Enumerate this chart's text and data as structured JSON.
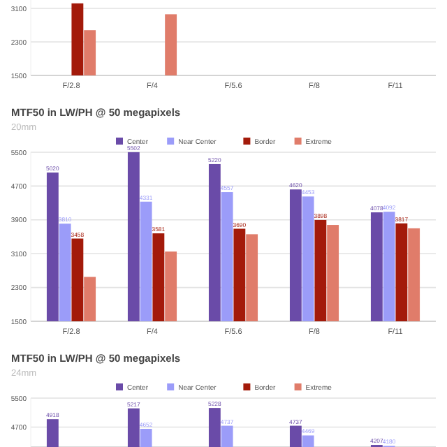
{
  "chart_data": [
    {
      "type": "bar",
      "categories": [
        "F/2.8",
        "F/4",
        "F/5.6",
        "F/8",
        "F/11"
      ],
      "ylim": [
        1500,
        3300
      ],
      "yticks": [
        1500,
        2300,
        3100
      ],
      "grid": "y",
      "series": [
        {
          "values": [
            null,
            null,
            null,
            null,
            null
          ]
        },
        {
          "values": [
            null,
            null,
            null,
            null,
            null
          ]
        },
        {
          "color": "#a31a0a",
          "values": [
            3220,
            null,
            null,
            null,
            null
          ]
        },
        {
          "color": "#e07c6a",
          "values": [
            2580,
            2960,
            null,
            null,
            null
          ]
        }
      ]
    },
    {
      "type": "bar",
      "title": "MTF50 in LW/PH @ 50 megapixels",
      "subtitle": "20mm",
      "categories": [
        "F/2.8",
        "F/4",
        "F/5.6",
        "F/8",
        "F/11"
      ],
      "ylim": [
        1500,
        5510
      ],
      "yticks": [
        1500,
        2300,
        3100,
        3900,
        4700,
        5500
      ],
      "grid": "y",
      "legend": "top",
      "series": [
        {
          "name": "Center",
          "color": "#6a4ba8",
          "values": [
            5020,
            5502,
            5220,
            4620,
            4078
          ],
          "value_labels": [
            "5020",
            "5502",
            "5220",
            "4620",
            "4078"
          ]
        },
        {
          "name": "Near Center",
          "color": "#9b9cf9",
          "values": [
            3810,
            4331,
            4557,
            4453,
            4092
          ],
          "value_labels": [
            "3810",
            "4331",
            "4557",
            "4453",
            "4092"
          ]
        },
        {
          "name": "Border",
          "color": "#a31a0a",
          "values": [
            3458,
            3581,
            3690,
            3898,
            3817
          ],
          "value_labels": [
            "3458",
            "3581",
            "3690",
            "3898",
            "3817"
          ]
        },
        {
          "name": "Extreme",
          "color": "#e07c6a",
          "values": [
            2550,
            3150,
            3560,
            3780,
            3700
          ]
        }
      ]
    },
    {
      "type": "bar",
      "title": "MTF50 in LW/PH @ 50 megapixels",
      "subtitle": "24mm",
      "categories": [
        null,
        null,
        null,
        null,
        null
      ],
      "ylim": [
        4150,
        5500
      ],
      "yticks": [
        4700,
        5500
      ],
      "grid": "y",
      "legend": "top",
      "series": [
        {
          "name": "Center",
          "color": "#6a4ba8",
          "values": [
            4918,
            5217,
            5228,
            4737,
            4207
          ],
          "value_labels": [
            "4918",
            "5217",
            "5228",
            "4737",
            "4207"
          ]
        },
        {
          "name": "Near Center",
          "color": "#9b9cf9",
          "values": [
            null,
            4652,
            4737,
            4469,
            4180
          ],
          "value_labels": [
            null,
            "4652",
            "4737",
            "4469",
            "4180"
          ]
        },
        {
          "name": "Border",
          "color": "#a31a0a",
          "values": [
            null,
            null,
            null,
            null,
            null
          ]
        },
        {
          "name": "Extreme",
          "color": "#e07c6a",
          "values": [
            null,
            null,
            null,
            null,
            null
          ]
        }
      ]
    }
  ]
}
